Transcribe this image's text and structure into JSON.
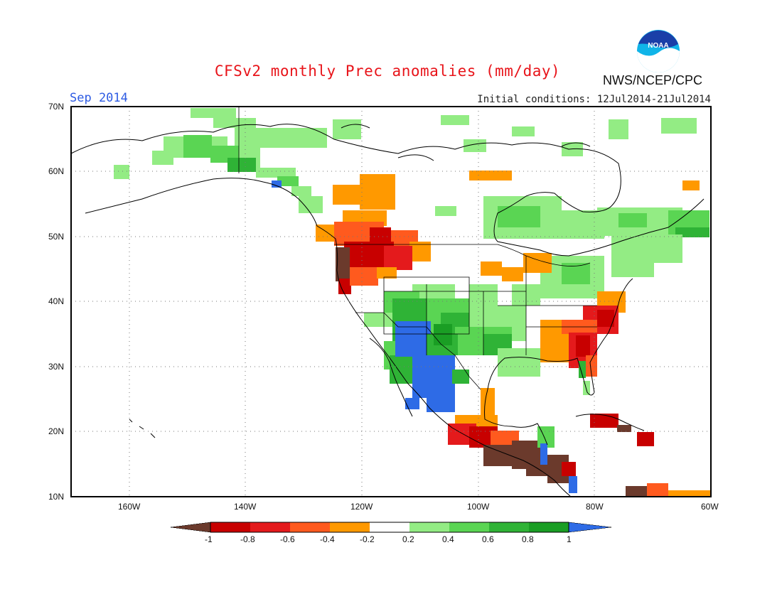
{
  "header": {
    "title": "CFSv2 monthly Prec anomalies (mm/day)",
    "month": "Sep 2014",
    "initial_conditions": "Initial conditions: 12Jul2014-21Jul2014",
    "org": "NWS/NCEP/CPC",
    "logo_text": "NOAA"
  },
  "axes": {
    "lat_labels": [
      "70N",
      "60N",
      "50N",
      "40N",
      "30N",
      "20N",
      "10N"
    ],
    "lon_labels": [
      "160W",
      "140W",
      "120W",
      "100W",
      "80W",
      "60W"
    ]
  },
  "colorbar": {
    "ticks": [
      "-1",
      "-0.8",
      "-0.6",
      "-0.4",
      "-0.2",
      "0.2",
      "0.4",
      "0.6",
      "0.8",
      "1"
    ],
    "colors": [
      "#6b3a2c",
      "#c80000",
      "#e41a1c",
      "#ff5a1e",
      "#ff9900",
      "#ffffff",
      "#93ec84",
      "#5ad553",
      "#2fb336",
      "#1a9e24",
      "#2e6be6"
    ]
  },
  "colors": {
    "title": "#e8141a",
    "month": "#2d5be3",
    "brown": "#6b3a2c",
    "dark_red": "#c80000",
    "red": "#e41a1c",
    "orange_red": "#ff5a1e",
    "orange": "#ff9900",
    "light_green": "#93ec84",
    "green": "#5ad553",
    "mid_green": "#2fb336",
    "dark_green": "#1a9e24",
    "blue": "#2e6be6"
  }
}
